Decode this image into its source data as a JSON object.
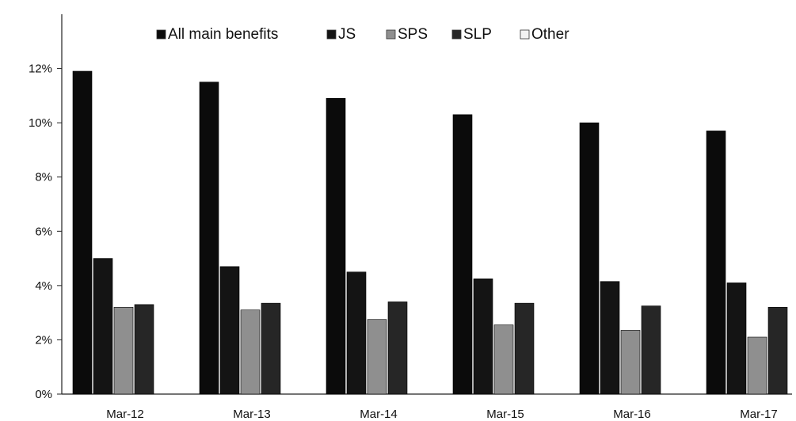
{
  "chart_data": {
    "type": "bar",
    "categories": [
      "Mar-12",
      "Mar-13",
      "Mar-14",
      "Mar-15",
      "Mar-16",
      "Mar-17"
    ],
    "series": [
      {
        "name": "All main benefits",
        "values": [
          11.9,
          11.5,
          10.9,
          10.3,
          10.0,
          9.7
        ],
        "color": "#0b0b0b"
      },
      {
        "name": "JS",
        "values": [
          5.0,
          4.7,
          4.5,
          4.25,
          4.15,
          4.1
        ],
        "color": "#141414"
      },
      {
        "name": "SPS",
        "values": [
          3.2,
          3.1,
          2.75,
          2.55,
          2.35,
          2.1
        ],
        "color": "#8f8f8f"
      },
      {
        "name": "SLP",
        "values": [
          3.3,
          3.35,
          3.4,
          3.35,
          3.25,
          3.2
        ],
        "color": "#262626"
      },
      {
        "name": "Other",
        "values": [
          0,
          0,
          0,
          0,
          0,
          0
        ],
        "color": "#f2f2f2"
      }
    ],
    "ylim": [
      0,
      14
    ],
    "yticks": [
      0,
      2,
      4,
      6,
      8,
      10,
      12
    ],
    "ytick_labels": [
      "0%",
      "2%",
      "4%",
      "6%",
      "8%",
      "10%",
      "12%"
    ],
    "legend_position": "top",
    "grid": false,
    "title": "",
    "xlabel": "",
    "ylabel": ""
  }
}
